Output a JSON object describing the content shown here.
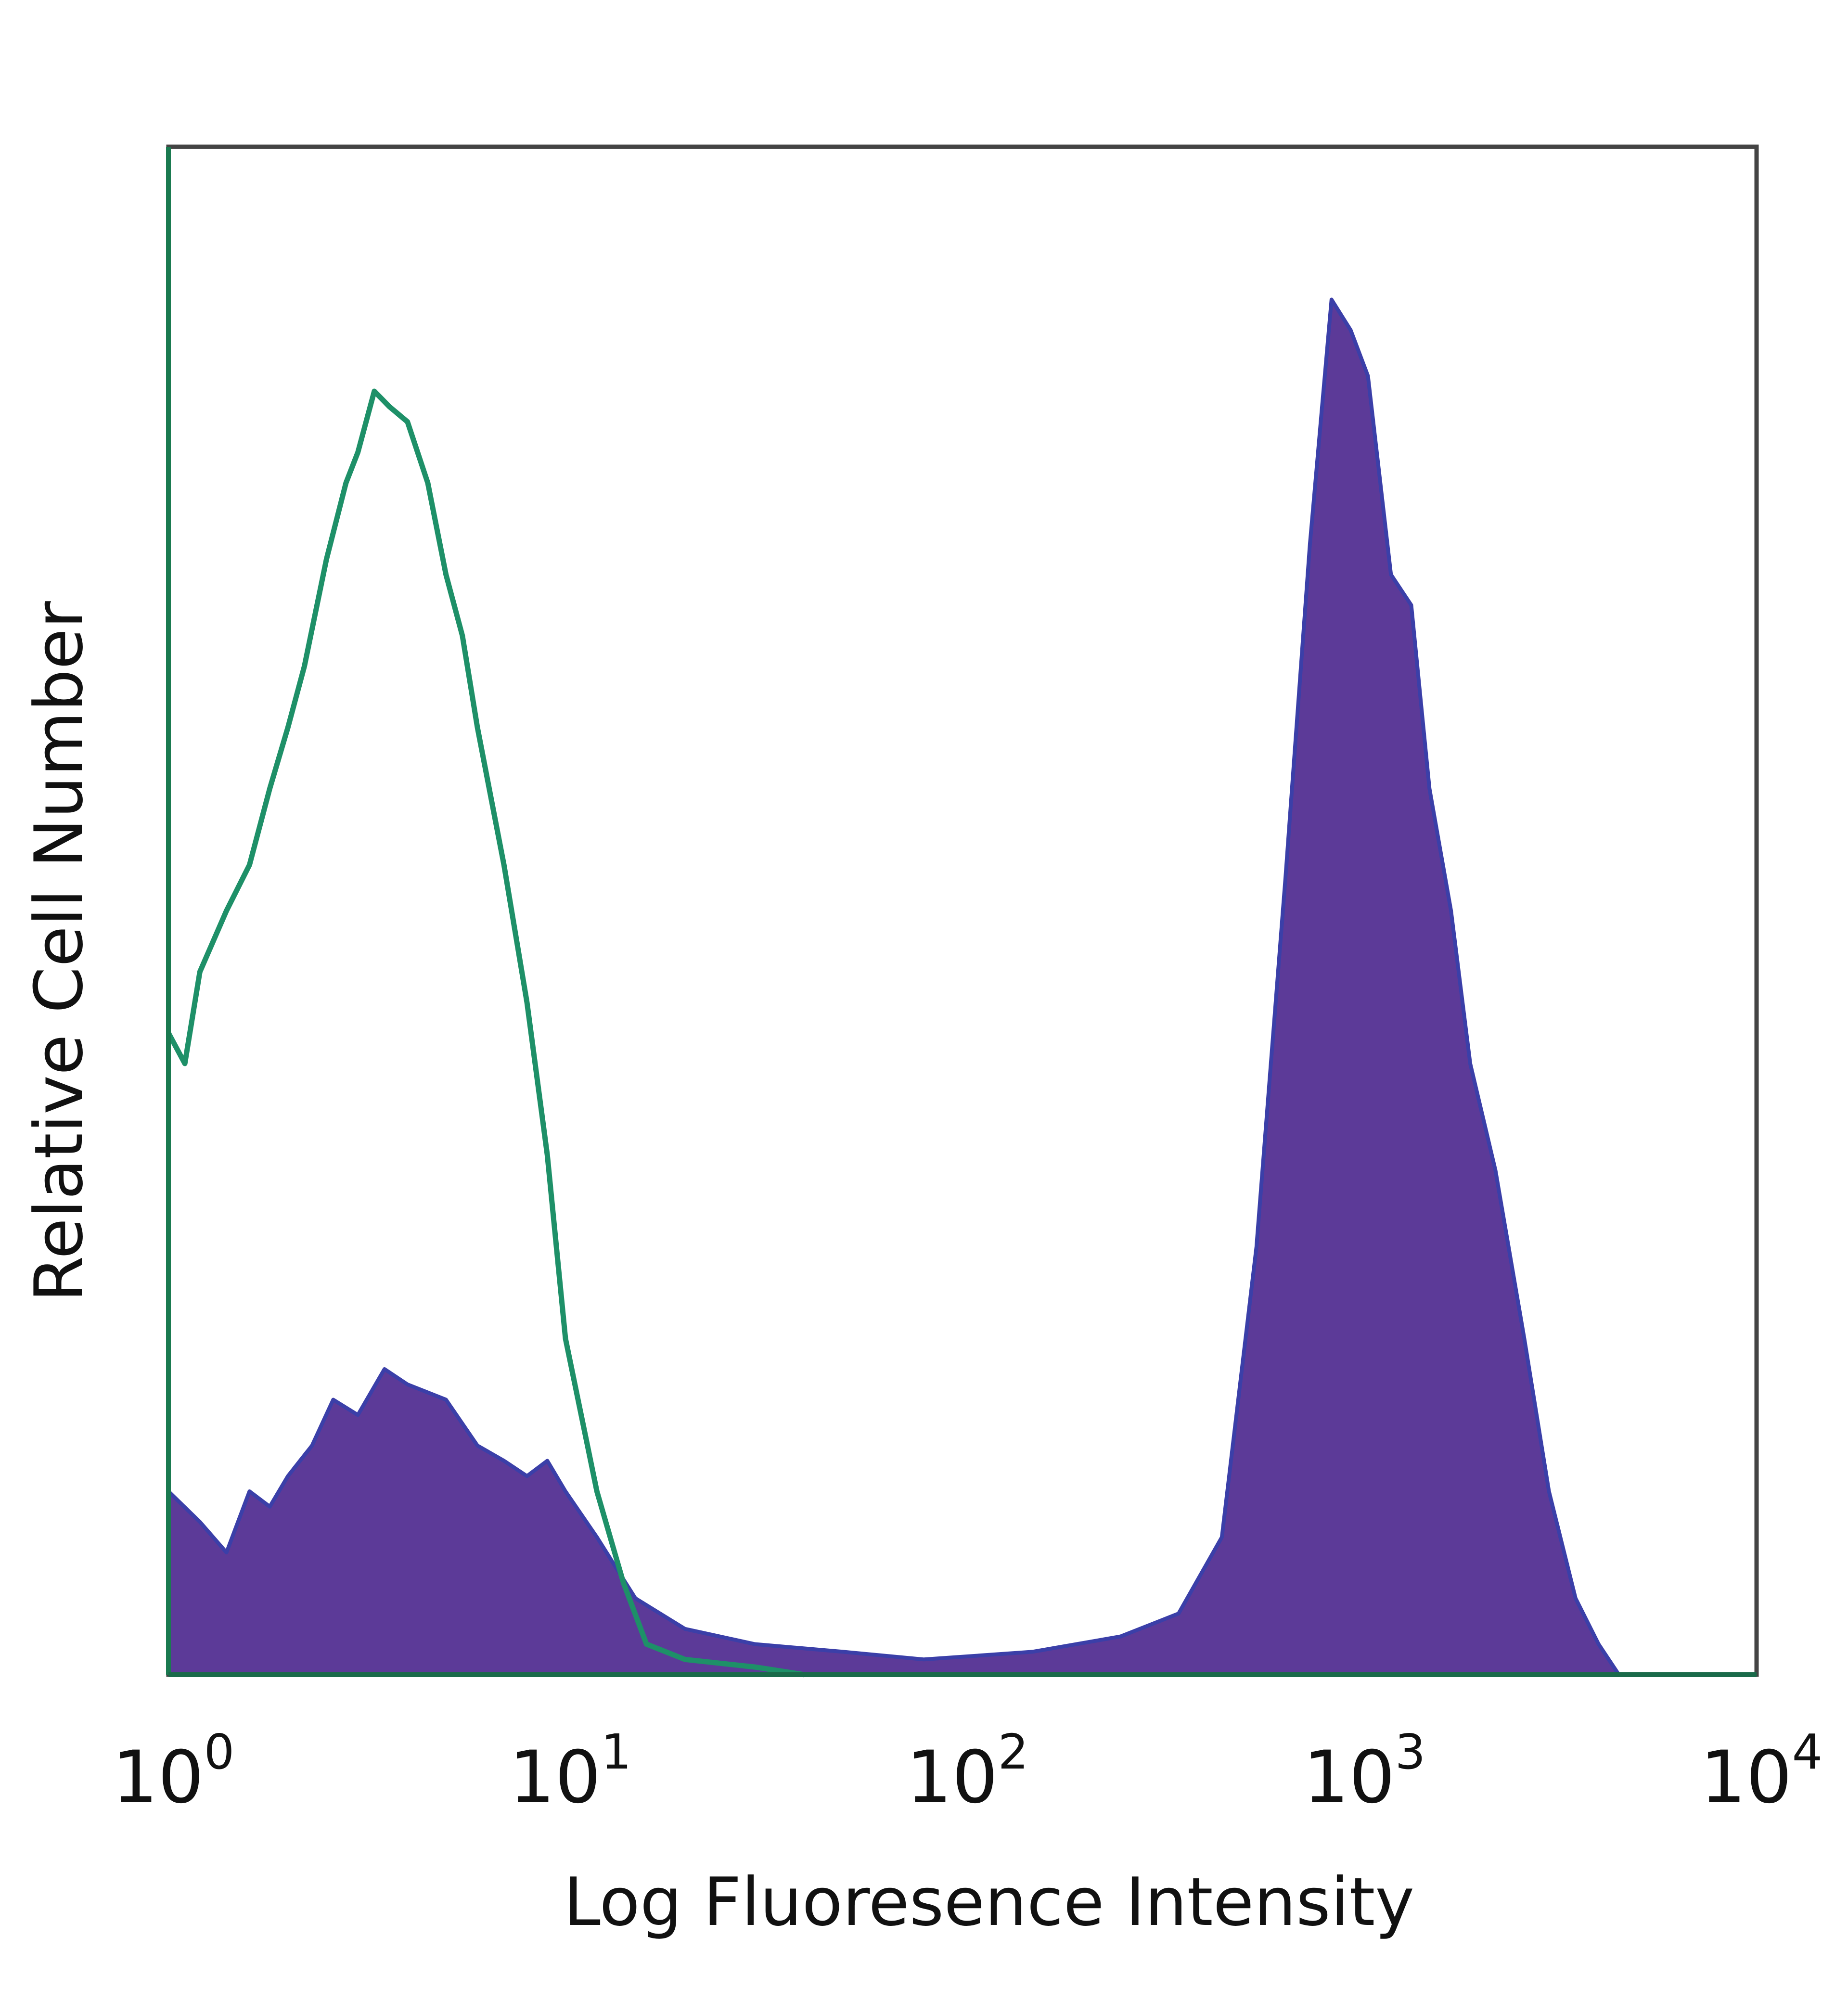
{
  "chart_data": {
    "type": "area",
    "xlabel": "Log Fluoresence Intensity",
    "ylabel": "Relative Cell Number",
    "x_scale": "log",
    "xlim": [
      1,
      10000
    ],
    "ylim": [
      0,
      1
    ],
    "x_ticks": [
      {
        "value": 1,
        "base": "10",
        "exp": "0"
      },
      {
        "value": 10,
        "base": "10",
        "exp": "1"
      },
      {
        "value": 100,
        "base": "10",
        "exp": "2"
      },
      {
        "value": 1000,
        "base": "10",
        "exp": "3"
      },
      {
        "value": 10000,
        "base": "10",
        "exp": "4"
      }
    ],
    "grid": false,
    "legend": "none",
    "series": [
      {
        "style": "filled",
        "color": "#5c3a98",
        "edge_color": "#3b3fa8",
        "points": [
          [
            1.0,
            0.12
          ],
          [
            1.2,
            0.1
          ],
          [
            1.4,
            0.08
          ],
          [
            1.6,
            0.12
          ],
          [
            1.8,
            0.11
          ],
          [
            2.0,
            0.13
          ],
          [
            2.3,
            0.15
          ],
          [
            2.6,
            0.18
          ],
          [
            3.0,
            0.17
          ],
          [
            3.5,
            0.2
          ],
          [
            4.0,
            0.19
          ],
          [
            5.0,
            0.18
          ],
          [
            6.0,
            0.15
          ],
          [
            7.0,
            0.14
          ],
          [
            8.0,
            0.13
          ],
          [
            9.0,
            0.14
          ],
          [
            10.0,
            0.12
          ],
          [
            12.0,
            0.09
          ],
          [
            15.0,
            0.05
          ],
          [
            20.0,
            0.03
          ],
          [
            30.0,
            0.02
          ],
          [
            50.0,
            0.015
          ],
          [
            80.0,
            0.01
          ],
          [
            150.0,
            0.015
          ],
          [
            250.0,
            0.025
          ],
          [
            350.0,
            0.04
          ],
          [
            450.0,
            0.09
          ],
          [
            550.0,
            0.28
          ],
          [
            650.0,
            0.52
          ],
          [
            750.0,
            0.74
          ],
          [
            850.0,
            0.9
          ],
          [
            950.0,
            0.88
          ],
          [
            1050.0,
            0.85
          ],
          [
            1200.0,
            0.72
          ],
          [
            1350.0,
            0.7
          ],
          [
            1500.0,
            0.58
          ],
          [
            1700.0,
            0.5
          ],
          [
            1900.0,
            0.4
          ],
          [
            2200.0,
            0.33
          ],
          [
            2600.0,
            0.22
          ],
          [
            3000.0,
            0.12
          ],
          [
            3500.0,
            0.05
          ],
          [
            4000.0,
            0.02
          ],
          [
            4500.0,
            0.0
          ]
        ]
      },
      {
        "style": "outline",
        "color": "#1e9068",
        "points": [
          [
            1.0,
            0.42
          ],
          [
            1.1,
            0.4
          ],
          [
            1.2,
            0.46
          ],
          [
            1.4,
            0.5
          ],
          [
            1.6,
            0.53
          ],
          [
            1.8,
            0.58
          ],
          [
            2.0,
            0.62
          ],
          [
            2.2,
            0.66
          ],
          [
            2.5,
            0.73
          ],
          [
            2.8,
            0.78
          ],
          [
            3.0,
            0.8
          ],
          [
            3.3,
            0.84
          ],
          [
            3.6,
            0.83
          ],
          [
            4.0,
            0.82
          ],
          [
            4.5,
            0.78
          ],
          [
            5.0,
            0.72
          ],
          [
            5.5,
            0.68
          ],
          [
            6.0,
            0.62
          ],
          [
            7.0,
            0.53
          ],
          [
            8.0,
            0.44
          ],
          [
            9.0,
            0.34
          ],
          [
            10.0,
            0.22
          ],
          [
            12.0,
            0.12
          ],
          [
            14.0,
            0.06
          ],
          [
            16.0,
            0.02
          ],
          [
            20.0,
            0.01
          ],
          [
            30.0,
            0.005
          ],
          [
            40.0,
            0.0
          ]
        ]
      }
    ]
  }
}
